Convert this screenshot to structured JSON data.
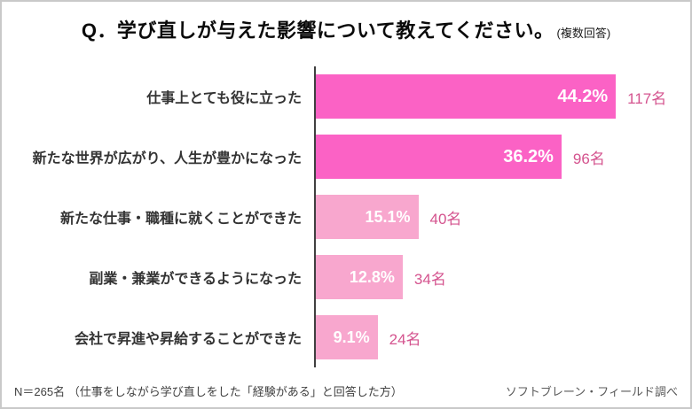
{
  "title": {
    "main": "Q．学び直しが与えた影響について教えてください。",
    "note": "(複数回答)"
  },
  "chart_data": {
    "type": "bar",
    "orientation": "horizontal",
    "title": "学び直しが与えた影響について教えてください。(複数回答)",
    "categories": [
      "仕事上とても役に立った",
      "新たな世界が広がり、人生が豊かになった",
      "新たな仕事・職種に就くことができた",
      "副業・兼業ができるようになった",
      "会社で昇進や昇給することができた"
    ],
    "values": [
      44.2,
      36.2,
      15.1,
      12.8,
      9.1
    ],
    "value_labels": [
      "44.2%",
      "36.2%",
      "15.1%",
      "12.8%",
      "9.1%"
    ],
    "counts": [
      "117名",
      "96名",
      "40名",
      "34名",
      "24名"
    ],
    "xlim": [
      0,
      50
    ],
    "grid": false,
    "legend": false,
    "bar_colors": [
      "#fb62c5",
      "#fb62c5",
      "#f8a7ce",
      "#f8a7ce",
      "#f8a7ce"
    ],
    "highlight_color": "#fb62c5",
    "muted_color": "#f8a7ce",
    "count_text_color": "#d4538e"
  },
  "footer": {
    "left": "N＝265名 （仕事をしながら学び直しをした「経験がある」と回答した方）",
    "right": "ソフトブレーン・フィールド調べ"
  }
}
